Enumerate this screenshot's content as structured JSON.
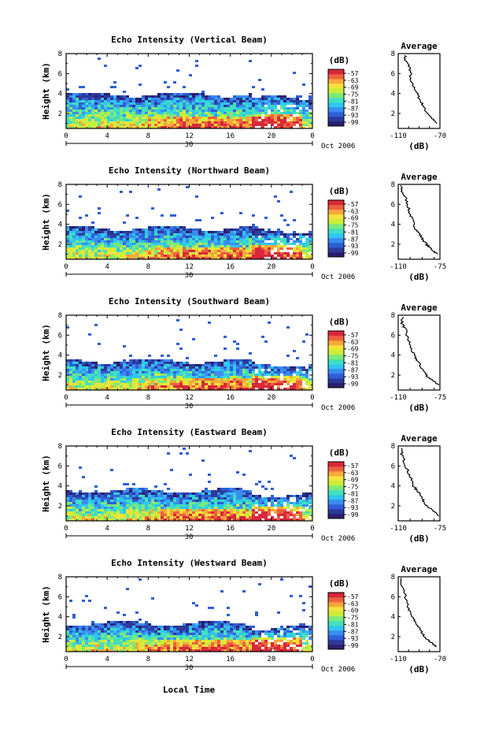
{
  "x_axis_label": "Local Time",
  "date_label": "Oct 2006",
  "day_label": "30",
  "avg_title": "Average",
  "unit_label": "(dB)",
  "y_axis_label": "Height (km)",
  "colorbar_ticks": [
    "-57",
    "-63",
    "-69",
    "-75",
    "-81",
    "-87",
    "-93",
    "-99"
  ],
  "colors": {
    "colormap": [
      "#2b1e6e",
      "#2c3a9c",
      "#2f5fd6",
      "#3a8ef0",
      "#2fc6f0",
      "#3fe0c0",
      "#7de87a",
      "#c9ee3a",
      "#f3e33a",
      "#f7a83a",
      "#ef6040",
      "#d8283a"
    ],
    "no_data": "#ffffff"
  },
  "chart_data": [
    {
      "type": "heatmap",
      "title": "Echo Intensity (Vertical Beam)",
      "xlabel": "Local Time",
      "ylabel": "Height (km)",
      "x_ticks": [
        "0",
        "4",
        "8",
        "12",
        "16",
        "20",
        "0"
      ],
      "y_ticks": [
        "2",
        "4",
        "6",
        "8"
      ],
      "xlim": [
        0,
        24
      ],
      "ylim": [
        0.5,
        8
      ],
      "colorbar": {
        "label": "(dB)",
        "range": [
          -99,
          -57
        ],
        "ticks": [
          -57,
          -63,
          -69,
          -75,
          -81,
          -87,
          -93,
          -99
        ]
      },
      "echo_top_km": 4.0,
      "average_profile": {
        "title": "Average",
        "xlabel": "(dB)",
        "xlim": [
          -110,
          -70
        ],
        "x_ticks": [
          "-110",
          "-70"
        ],
        "y_ticks": [
          "2",
          "4",
          "6",
          "8"
        ],
        "points": [
          [
            -103,
            7.8
          ],
          [
            -104,
            7.4
          ],
          [
            -101,
            7.0
          ],
          [
            -99,
            6.6
          ],
          [
            -98,
            6.0
          ],
          [
            -99,
            5.4
          ],
          [
            -96,
            4.8
          ],
          [
            -93,
            4.3
          ],
          [
            -91,
            3.8
          ],
          [
            -89,
            3.3
          ],
          [
            -86,
            2.8
          ],
          [
            -84,
            2.3
          ],
          [
            -80,
            1.8
          ],
          [
            -76,
            1.3
          ],
          [
            -73,
            1.0
          ]
        ]
      }
    },
    {
      "type": "heatmap",
      "title": "Echo Intensity (Northward Beam)",
      "xlabel": "Local Time",
      "ylabel": "Height (km)",
      "x_ticks": [
        "0",
        "4",
        "8",
        "12",
        "16",
        "20",
        "0"
      ],
      "y_ticks": [
        "2",
        "4",
        "6",
        "8"
      ],
      "xlim": [
        0,
        24
      ],
      "ylim": [
        0.5,
        8
      ],
      "colorbar": {
        "label": "(dB)",
        "range": [
          -99,
          -57
        ],
        "ticks": [
          -57,
          -63,
          -69,
          -75,
          -81,
          -87,
          -93,
          -99
        ]
      },
      "echo_top_km": 3.7,
      "average_profile": {
        "title": "Average",
        "xlabel": "(dB)",
        "xlim": [
          -110,
          -75
        ],
        "x_ticks": [
          "-110",
          "-75"
        ],
        "y_ticks": [
          "2",
          "4",
          "6",
          "8"
        ],
        "points": [
          [
            -108,
            7.9
          ],
          [
            -107,
            7.3
          ],
          [
            -104,
            6.7
          ],
          [
            -102,
            6.0
          ],
          [
            -101,
            5.3
          ],
          [
            -99,
            4.7
          ],
          [
            -97,
            4.0
          ],
          [
            -95,
            3.5
          ],
          [
            -92,
            3.0
          ],
          [
            -90,
            2.6
          ],
          [
            -87,
            2.1
          ],
          [
            -84,
            1.7
          ],
          [
            -80,
            1.3
          ],
          [
            -77,
            1.0
          ]
        ]
      }
    },
    {
      "type": "heatmap",
      "title": "Echo Intensity (Southward Beam)",
      "xlabel": "Local Time",
      "ylabel": "Height (km)",
      "x_ticks": [
        "0",
        "4",
        "8",
        "12",
        "16",
        "20",
        "0"
      ],
      "y_ticks": [
        "2",
        "4",
        "6",
        "8"
      ],
      "xlim": [
        0,
        24
      ],
      "ylim": [
        0.5,
        8
      ],
      "colorbar": {
        "label": "(dB)",
        "range": [
          -99,
          -57
        ],
        "ticks": [
          -57,
          -63,
          -69,
          -75,
          -81,
          -87,
          -93,
          -99
        ]
      },
      "echo_top_km": 3.5,
      "average_profile": {
        "title": "Average",
        "xlabel": "(dB)",
        "xlim": [
          -110,
          -75
        ],
        "x_ticks": [
          "-110",
          "-75"
        ],
        "y_ticks": [
          "2",
          "4",
          "6",
          "8"
        ],
        "points": [
          [
            -106,
            7.8
          ],
          [
            -107,
            7.2
          ],
          [
            -104,
            6.6
          ],
          [
            -103,
            6.0
          ],
          [
            -101,
            5.4
          ],
          [
            -100,
            4.9
          ],
          [
            -98,
            4.3
          ],
          [
            -96,
            3.8
          ],
          [
            -93,
            3.3
          ],
          [
            -91,
            2.8
          ],
          [
            -88,
            2.3
          ],
          [
            -85,
            1.8
          ],
          [
            -80,
            1.4
          ],
          [
            -76,
            1.0
          ]
        ]
      }
    },
    {
      "type": "heatmap",
      "title": "Echo Intensity (Eastward Beam)",
      "xlabel": "Local Time",
      "ylabel": "Height (km)",
      "x_ticks": [
        "0",
        "4",
        "8",
        "12",
        "16",
        "20",
        "0"
      ],
      "y_ticks": [
        "2",
        "4",
        "6",
        "8"
      ],
      "xlim": [
        0,
        24
      ],
      "ylim": [
        0.5,
        8
      ],
      "colorbar": {
        "label": "(dB)",
        "range": [
          -99,
          -57
        ],
        "ticks": [
          -57,
          -63,
          -69,
          -75,
          -81,
          -87,
          -93,
          -99
        ]
      },
      "echo_top_km": 3.6,
      "average_profile": {
        "title": "Average",
        "xlabel": "(dB)",
        "xlim": [
          -110,
          -75
        ],
        "x_ticks": [
          "-110",
          "-75"
        ],
        "y_ticks": [
          "2",
          "4",
          "6",
          "8"
        ],
        "points": [
          [
            -108,
            7.8
          ],
          [
            -107,
            7.2
          ],
          [
            -105,
            6.5
          ],
          [
            -103,
            5.8
          ],
          [
            -101,
            5.2
          ],
          [
            -99,
            4.6
          ],
          [
            -97,
            4.0
          ],
          [
            -95,
            3.6
          ],
          [
            -91,
            3.2
          ],
          [
            -90,
            2.7
          ],
          [
            -87,
            2.2
          ],
          [
            -83,
            1.7
          ],
          [
            -79,
            1.3
          ],
          [
            -76,
            1.0
          ]
        ]
      }
    },
    {
      "type": "heatmap",
      "title": "Echo Intensity (Westward Beam)",
      "xlabel": "Local Time",
      "ylabel": "Height (km)",
      "x_ticks": [
        "0",
        "4",
        "8",
        "12",
        "16",
        "20",
        "0"
      ],
      "y_ticks": [
        "2",
        "4",
        "6",
        "8"
      ],
      "xlim": [
        0,
        24
      ],
      "ylim": [
        0.5,
        8
      ],
      "colorbar": {
        "label": "(dB)",
        "range": [
          -99,
          -57
        ],
        "ticks": [
          -57,
          -63,
          -69,
          -75,
          -81,
          -87,
          -93,
          -99
        ]
      },
      "echo_top_km": 3.4,
      "average_profile": {
        "title": "Average",
        "xlabel": "(dB)",
        "xlim": [
          -110,
          -70
        ],
        "x_ticks": [
          "-110",
          "-70"
        ],
        "y_ticks": [
          "2",
          "4",
          "6",
          "8"
        ],
        "points": [
          [
            -107,
            7.9
          ],
          [
            -108,
            7.3
          ],
          [
            -105,
            6.6
          ],
          [
            -103,
            6.0
          ],
          [
            -102,
            5.4
          ],
          [
            -100,
            4.8
          ],
          [
            -98,
            4.2
          ],
          [
            -95,
            3.7
          ],
          [
            -92,
            3.2
          ],
          [
            -89,
            2.7
          ],
          [
            -86,
            2.2
          ],
          [
            -82,
            1.7
          ],
          [
            -77,
            1.3
          ],
          [
            -73,
            1.0
          ]
        ]
      }
    }
  ]
}
